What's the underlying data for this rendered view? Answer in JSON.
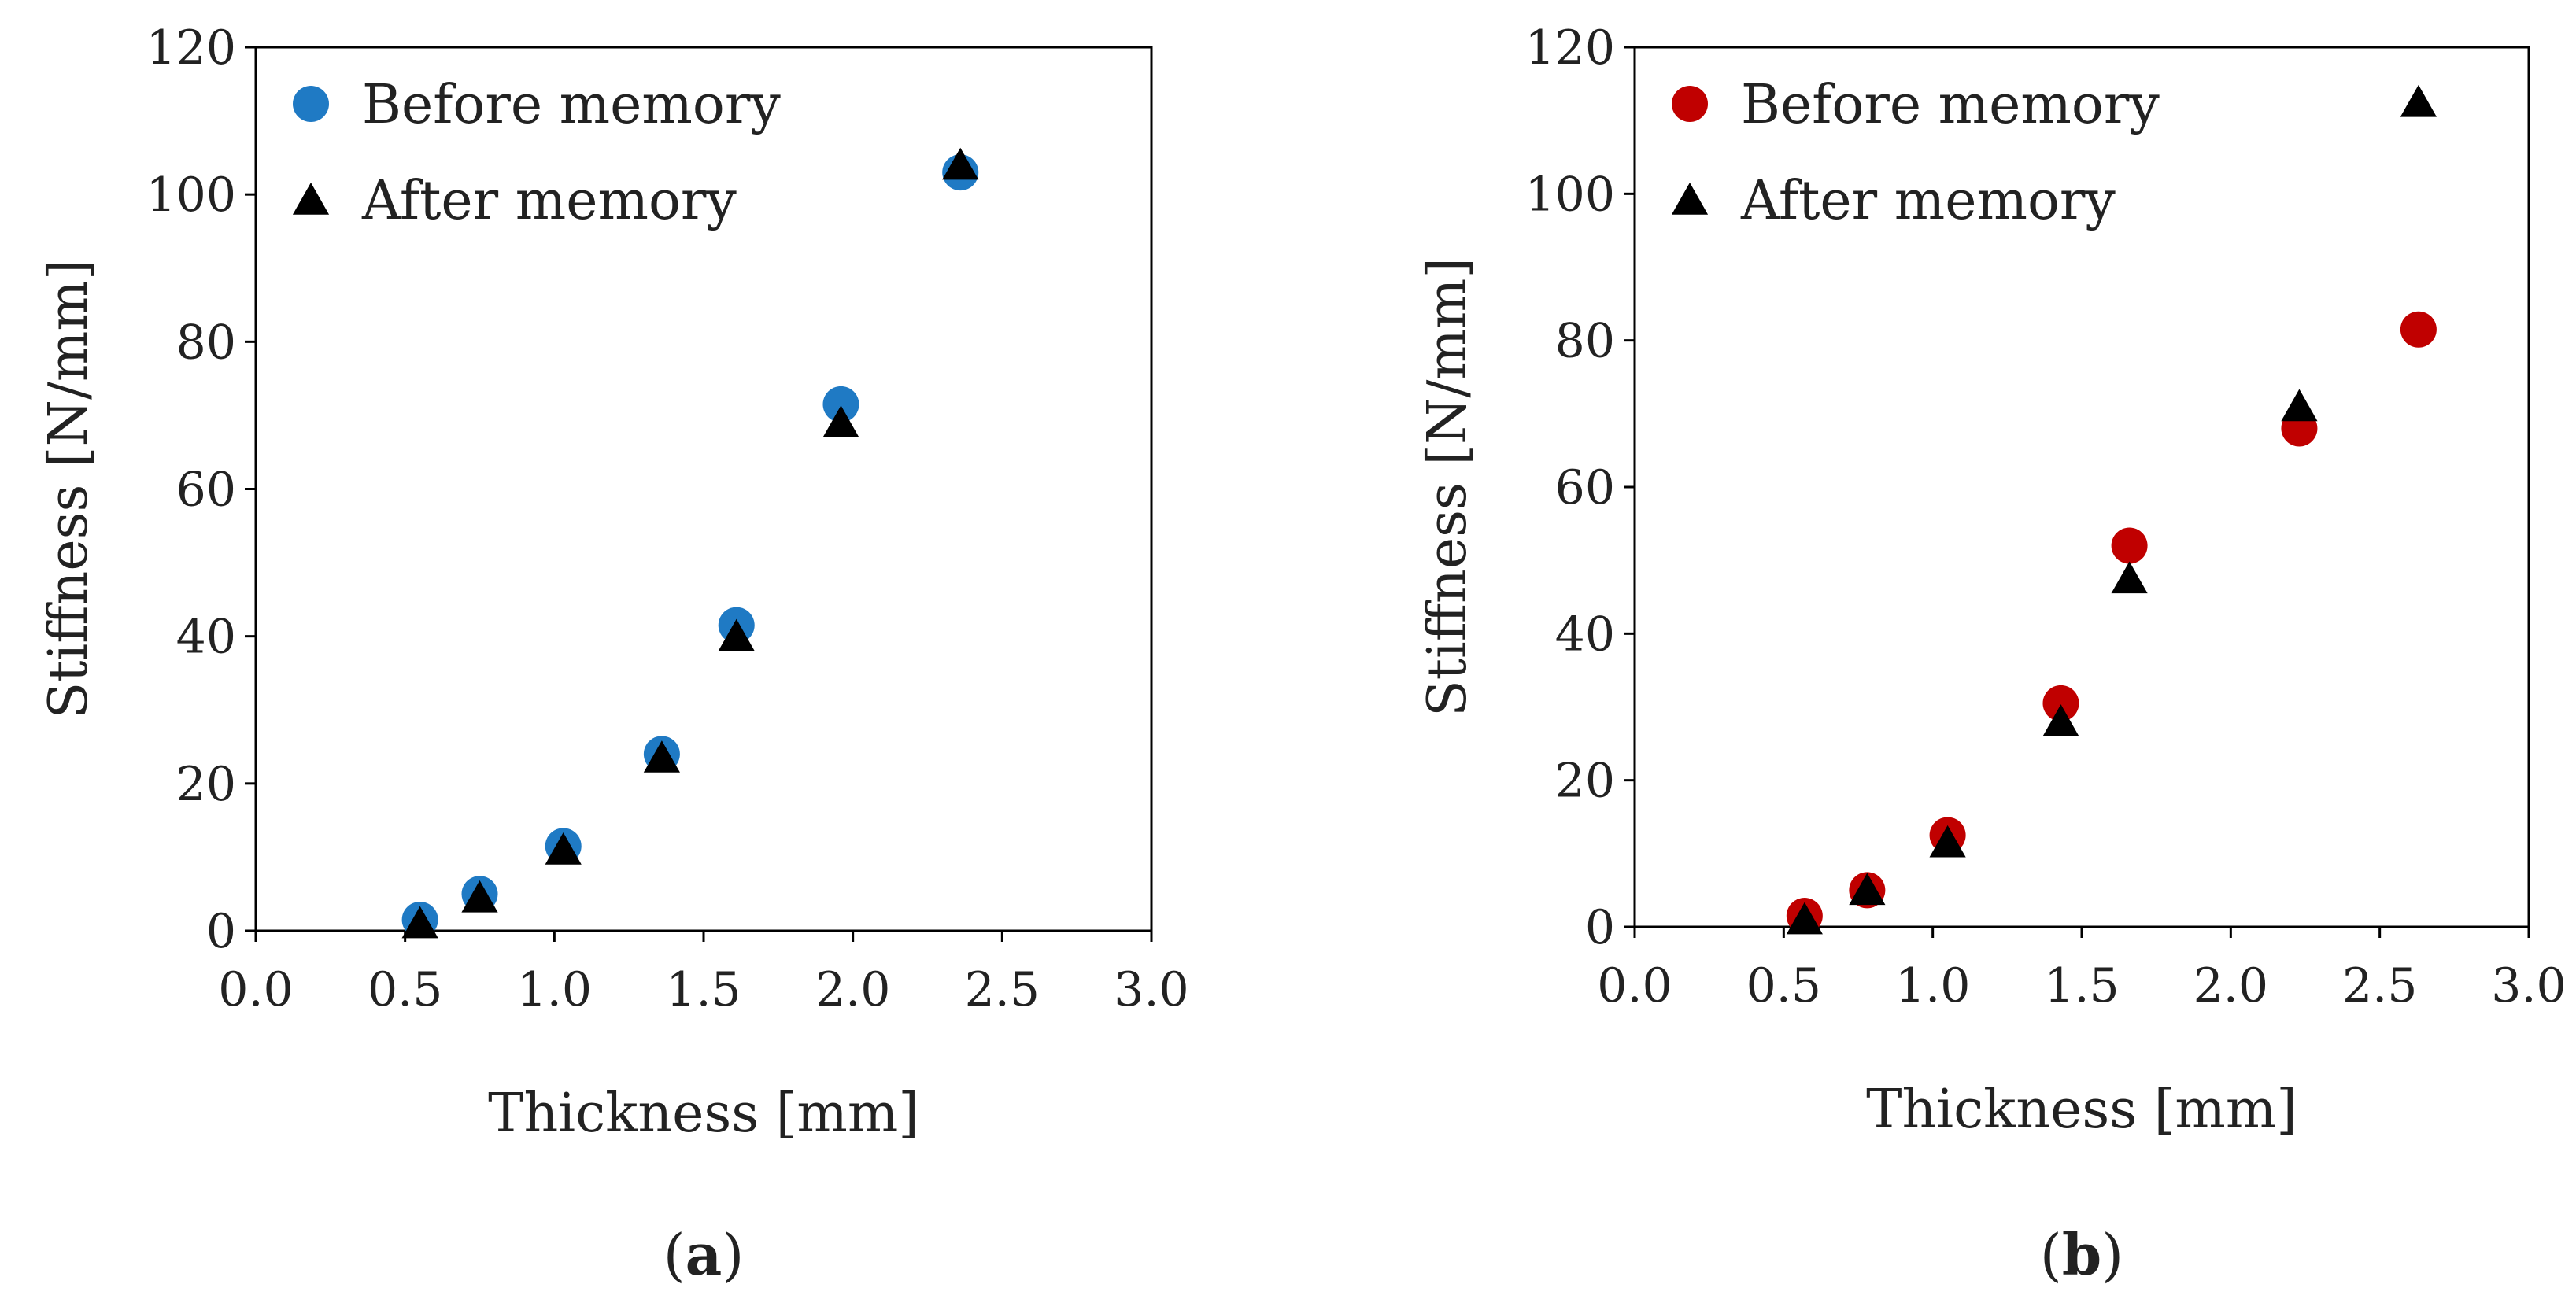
{
  "chart_data": [
    {
      "type": "scatter",
      "panel_label": "(a)",
      "panel_letter": "a",
      "xlabel": "Thickness [mm]",
      "ylabel": "Stiffness [N/mm]",
      "xlim": [
        0,
        3
      ],
      "ylim": [
        0,
        120
      ],
      "xticks": [
        "0.0",
        "0.5",
        "1.0",
        "1.5",
        "2.0",
        "2.5",
        "3.0"
      ],
      "yticks": [
        "0",
        "20",
        "40",
        "60",
        "80",
        "100",
        "120"
      ],
      "grid": false,
      "legend_position": "top-left",
      "series": [
        {
          "name": "Before memory",
          "marker": "circle",
          "color": "#1f7ac4",
          "x": [
            0.55,
            0.75,
            1.03,
            1.36,
            1.61,
            1.96,
            2.36
          ],
          "y": [
            1.5,
            5.0,
            11.5,
            24.0,
            41.5,
            71.5,
            103.0
          ]
        },
        {
          "name": "After memory",
          "marker": "triangle",
          "color": "#000000",
          "x": [
            0.55,
            0.75,
            1.03,
            1.36,
            1.61,
            1.96,
            2.36
          ],
          "y": [
            1.0,
            4.5,
            11.0,
            23.5,
            40.0,
            69.0,
            104.0
          ]
        }
      ]
    },
    {
      "type": "scatter",
      "panel_label": "(b)",
      "panel_letter": "b",
      "xlabel": "Thickness [mm]",
      "ylabel": "Stiffness [N/mm]",
      "xlim": [
        0,
        3
      ],
      "ylim": [
        0,
        120
      ],
      "xticks": [
        "0.0",
        "0.5",
        "1.0",
        "1.5",
        "2.0",
        "2.5",
        "3.0"
      ],
      "yticks": [
        "0",
        "20",
        "40",
        "60",
        "80",
        "100",
        "120"
      ],
      "grid": false,
      "legend_position": "top-left",
      "series": [
        {
          "name": "Before memory",
          "marker": "circle",
          "color": "#c00000",
          "x": [
            0.57,
            0.78,
            1.05,
            1.43,
            1.66,
            2.23,
            2.63
          ],
          "y": [
            1.5,
            5.0,
            12.5,
            30.5,
            52.0,
            68.0,
            81.5
          ]
        },
        {
          "name": "After memory",
          "marker": "triangle",
          "color": "#000000",
          "x": [
            0.57,
            0.78,
            1.05,
            1.43,
            1.66,
            2.23,
            2.63
          ],
          "y": [
            1.0,
            5.0,
            11.5,
            28.0,
            47.5,
            71.0,
            112.5
          ]
        }
      ]
    }
  ]
}
